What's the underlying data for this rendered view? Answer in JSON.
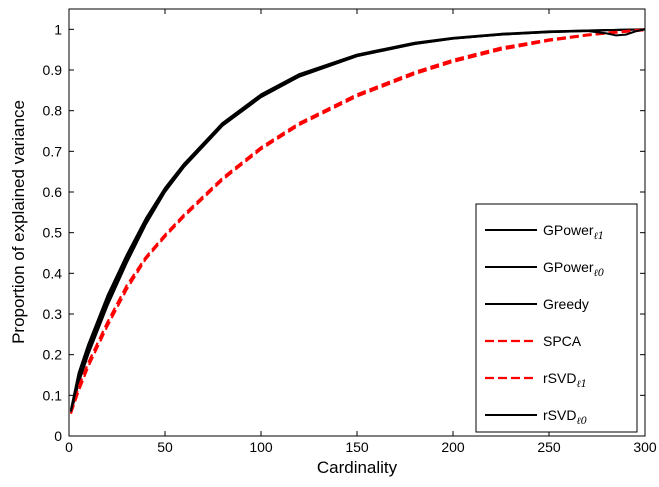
{
  "chart_data": {
    "type": "line",
    "xlabel": "Cardinality",
    "ylabel": "Proportion of explained variance",
    "xlim": [
      0,
      300
    ],
    "ylim": [
      0,
      1.05
    ],
    "xticks": [
      "0",
      "50",
      "100",
      "150",
      "200",
      "250",
      "300"
    ],
    "yticks": [
      "0",
      "0.1",
      "0.2",
      "0.3",
      "0.4",
      "0.5",
      "0.6",
      "0.7",
      "0.8",
      "0.9",
      "1"
    ],
    "grid": false,
    "legend_position": "lower-right",
    "series": [
      {
        "name": "GPower",
        "subscript": "ℓ1",
        "color": "#000000",
        "dash": "solid",
        "x": [
          1,
          5,
          10,
          20,
          30,
          40,
          50,
          60,
          80,
          100,
          120,
          150,
          180,
          200,
          225,
          250,
          270,
          280,
          290,
          300
        ],
        "y": [
          0.06,
          0.15,
          0.22,
          0.34,
          0.44,
          0.53,
          0.605,
          0.665,
          0.765,
          0.835,
          0.885,
          0.935,
          0.965,
          0.978,
          0.988,
          0.994,
          0.997,
          0.998,
          0.999,
          1.0
        ]
      },
      {
        "name": "GPower",
        "subscript": "ℓ0",
        "color": "#000000",
        "dash": "solid",
        "x": [
          1,
          5,
          10,
          20,
          30,
          40,
          50,
          60,
          80,
          100,
          120,
          150,
          180,
          200,
          225,
          250,
          270,
          280,
          290,
          300
        ],
        "y": [
          0.065,
          0.155,
          0.225,
          0.345,
          0.445,
          0.535,
          0.61,
          0.67,
          0.77,
          0.84,
          0.89,
          0.938,
          0.967,
          0.979,
          0.989,
          0.995,
          0.997,
          0.998,
          0.999,
          1.0
        ]
      },
      {
        "name": "Greedy",
        "subscript": "",
        "color": "#000000",
        "dash": "solid",
        "x": [
          1,
          5,
          10,
          20,
          30,
          40,
          50,
          60,
          80,
          100,
          120,
          150,
          180,
          200,
          225,
          250,
          270,
          280,
          290,
          300
        ],
        "y": [
          0.055,
          0.13,
          0.2,
          0.32,
          0.425,
          0.52,
          0.6,
          0.662,
          0.763,
          0.833,
          0.884,
          0.934,
          0.964,
          0.977,
          0.987,
          0.993,
          0.996,
          0.998,
          0.999,
          1.0
        ]
      },
      {
        "name": "SPCA",
        "subscript": "",
        "color": "#ff0000",
        "dash": "dashed",
        "x": [
          1,
          5,
          10,
          20,
          30,
          40,
          50,
          60,
          80,
          100,
          120,
          150,
          180,
          200,
          225,
          250,
          270,
          280,
          290,
          300
        ],
        "y": [
          0.06,
          0.12,
          0.18,
          0.28,
          0.37,
          0.44,
          0.495,
          0.545,
          0.635,
          0.71,
          0.77,
          0.84,
          0.895,
          0.925,
          0.955,
          0.975,
          0.987,
          0.992,
          0.996,
          1.0
        ]
      },
      {
        "name": "rSVD",
        "subscript": "ℓ1",
        "color": "#ff0000",
        "dash": "dashed",
        "x": [
          1,
          5,
          10,
          20,
          30,
          40,
          50,
          60,
          80,
          100,
          120,
          150,
          180,
          200,
          225,
          250,
          270,
          280,
          290,
          300
        ],
        "y": [
          0.055,
          0.11,
          0.17,
          0.27,
          0.36,
          0.435,
          0.49,
          0.54,
          0.63,
          0.705,
          0.765,
          0.835,
          0.89,
          0.92,
          0.95,
          0.972,
          0.985,
          0.99,
          0.994,
          0.998
        ]
      },
      {
        "name": "rSVD",
        "subscript": "ℓ0",
        "color": "#000000",
        "dash": "solid",
        "x": [
          1,
          5,
          10,
          20,
          30,
          40,
          50,
          60,
          80,
          100,
          120,
          150,
          180,
          200,
          225,
          250,
          270,
          280,
          285,
          290,
          295,
          300
        ],
        "y": [
          0.06,
          0.14,
          0.21,
          0.33,
          0.435,
          0.528,
          0.603,
          0.664,
          0.764,
          0.834,
          0.884,
          0.934,
          0.964,
          0.977,
          0.987,
          0.993,
          0.996,
          0.99,
          0.985,
          0.987,
          0.995,
          1.0
        ]
      }
    ]
  }
}
